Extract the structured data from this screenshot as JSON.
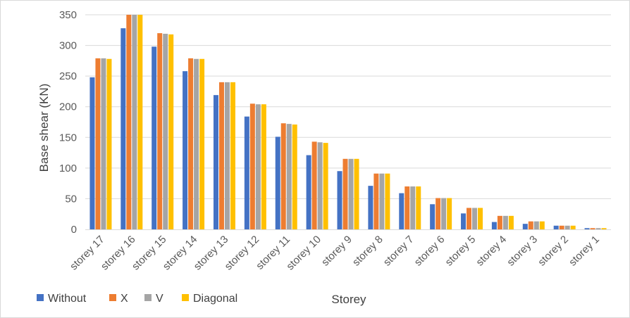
{
  "chart_data": {
    "type": "bar",
    "title": "",
    "xlabel": "Storey",
    "ylabel": "Base shear (KN)",
    "ylim": [
      0,
      350
    ],
    "yticks": [
      0,
      50,
      100,
      150,
      200,
      250,
      300,
      350
    ],
    "grid": true,
    "legend_position": "bottom-left",
    "categories": [
      "storey 17",
      "storey 16",
      "storey 15",
      "storey 14",
      "storey 13",
      "storey 12",
      "storey 11",
      "storey 10",
      "storey 9",
      "storey 8",
      "storey 7",
      "storey 6",
      "storey 5",
      "storey 4",
      "storey 3",
      "storey 2",
      "storey 1"
    ],
    "series": [
      {
        "name": "Without",
        "color": "#4472c4",
        "values": [
          248,
          328,
          298,
          258,
          219,
          184,
          151,
          121,
          95,
          71,
          59,
          41,
          26,
          12,
          9,
          6,
          2
        ]
      },
      {
        "name": "X",
        "color": "#ed7d31",
        "values": [
          279,
          351,
          320,
          279,
          240,
          205,
          173,
          143,
          115,
          91,
          70,
          51,
          35,
          22,
          13,
          6,
          2
        ]
      },
      {
        "name": "V",
        "color": "#a5a5a5",
        "values": [
          279,
          351,
          319,
          278,
          240,
          204,
          172,
          142,
          115,
          91,
          70,
          51,
          35,
          22,
          13,
          6,
          2
        ]
      },
      {
        "name": "Diagonal",
        "color": "#ffc000",
        "values": [
          278,
          350,
          318,
          278,
          240,
          204,
          171,
          141,
          115,
          91,
          70,
          51,
          35,
          22,
          13,
          6,
          2
        ]
      }
    ]
  }
}
